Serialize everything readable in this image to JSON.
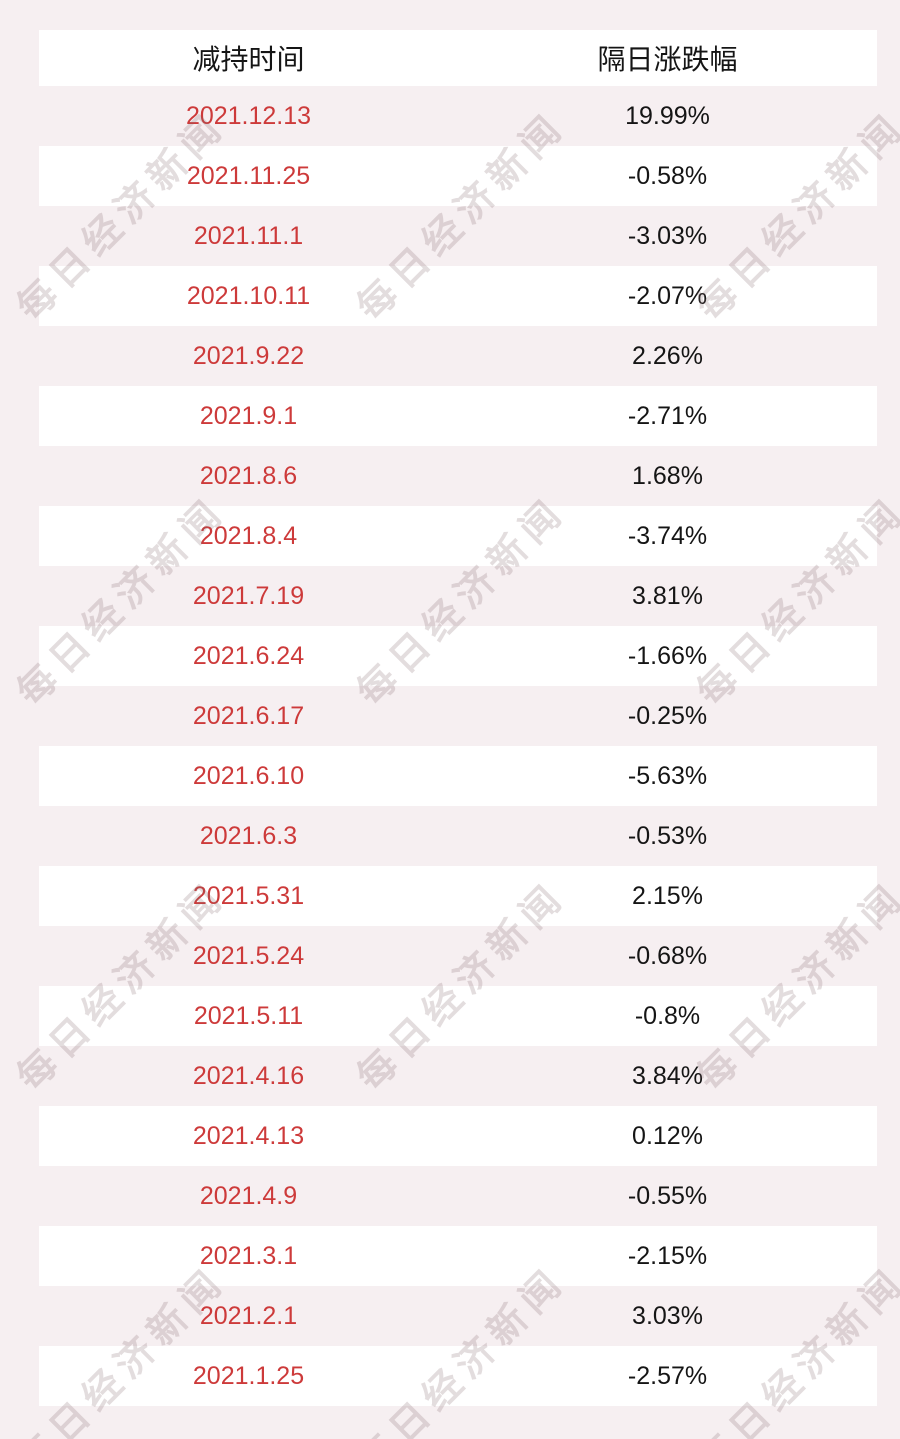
{
  "chart_data": {
    "type": "table",
    "columns": [
      "减持时间",
      "隔日涨跌幅"
    ],
    "rows": [
      {
        "date": "2021.12.13",
        "change": "19.99%"
      },
      {
        "date": "2021.11.25",
        "change": "-0.58%"
      },
      {
        "date": "2021.11.1",
        "change": "-3.03%"
      },
      {
        "date": "2021.10.11",
        "change": "-2.07%"
      },
      {
        "date": "2021.9.22",
        "change": "2.26%"
      },
      {
        "date": "2021.9.1",
        "change": "-2.71%"
      },
      {
        "date": "2021.8.6",
        "change": "1.68%"
      },
      {
        "date": "2021.8.4",
        "change": "-3.74%"
      },
      {
        "date": "2021.7.19",
        "change": "3.81%"
      },
      {
        "date": "2021.6.24",
        "change": "-1.66%"
      },
      {
        "date": "2021.6.17",
        "change": "-0.25%"
      },
      {
        "date": "2021.6.10",
        "change": "-5.63%"
      },
      {
        "date": "2021.6.3",
        "change": "-0.53%"
      },
      {
        "date": "2021.5.31",
        "change": "2.15%"
      },
      {
        "date": "2021.5.24",
        "change": "-0.68%"
      },
      {
        "date": "2021.5.11",
        "change": "-0.8%"
      },
      {
        "date": "2021.4.16",
        "change": "3.84%"
      },
      {
        "date": "2021.4.13",
        "change": "0.12%"
      },
      {
        "date": "2021.4.9",
        "change": "-0.55%"
      },
      {
        "date": "2021.3.1",
        "change": "-2.15%"
      },
      {
        "date": "2021.2.1",
        "change": "3.03%"
      },
      {
        "date": "2021.1.25",
        "change": "-2.57%"
      }
    ],
    "change_values_percent": [
      19.99,
      -0.58,
      -3.03,
      -2.07,
      2.26,
      -2.71,
      1.68,
      -3.74,
      3.81,
      -1.66,
      -0.25,
      -5.63,
      -0.53,
      2.15,
      -0.68,
      -0.8,
      3.84,
      0.12,
      -0.55,
      -2.15,
      3.03,
      -2.57
    ]
  },
  "watermark": {
    "text": "每日经济新闻"
  },
  "colors": {
    "page_pink": "#f6eff1",
    "row_white": "#ffffff",
    "date_red": "#cd3a3a",
    "text_black": "#151515"
  }
}
